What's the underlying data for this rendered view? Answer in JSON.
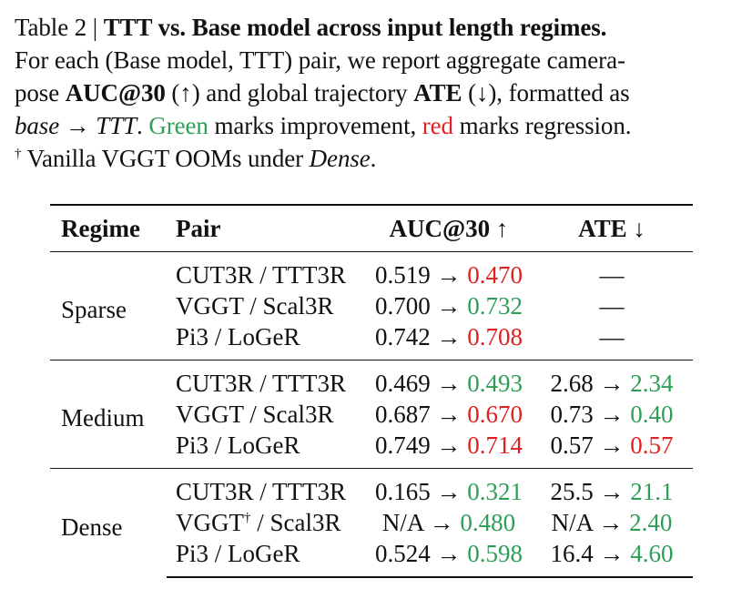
{
  "caption": {
    "line1_prefix": "Table 2 | ",
    "line1_bold": "TTT vs. Base model across input length regimes.",
    "line2": "For each (Base model, TTT) pair, we report aggregate camera-",
    "line3_a": "pose ",
    "line3_auc": "AUC@30",
    "line3_b": " (↑) and global trajectory ",
    "line3_ate": "ATE",
    "line3_c": " (↓), formatted as",
    "line4_base": "base",
    "line4_arrow": " → ",
    "line4_ttt": "TTT",
    "line4_dot": ". ",
    "line4_green": "Green",
    "line4_mid": " marks improvement, ",
    "line4_red": "red",
    "line4_end": " marks regression.",
    "line5_dagger": "†",
    "line5_text": " Vanilla VGGT OOMs under ",
    "line5_dense": "Dense",
    "line5_dot": "."
  },
  "table": {
    "headers": {
      "regime": "Regime",
      "pair": "Pair",
      "auc": "AUC@30 ↑",
      "ate": "ATE ↓"
    },
    "arrow": " → ",
    "colors": {
      "improvement": "#2e9e57",
      "regression": "#e02020"
    },
    "groups": [
      {
        "regime": "Sparse",
        "rows": [
          {
            "pair": "CUT3R / TTT3R",
            "auc_base": "0.519",
            "auc_ttt": "0.470",
            "auc_status": "red",
            "ate": "—"
          },
          {
            "pair": "VGGT / Scal3R",
            "auc_base": "0.700",
            "auc_ttt": "0.732",
            "auc_status": "green",
            "ate": "—"
          },
          {
            "pair": "Pi3 / LoGeR",
            "auc_base": "0.742",
            "auc_ttt": "0.708",
            "auc_status": "red",
            "ate": "—"
          }
        ]
      },
      {
        "regime": "Medium",
        "rows": [
          {
            "pair": "CUT3R / TTT3R",
            "auc_base": "0.469",
            "auc_ttt": "0.493",
            "auc_status": "green",
            "ate_base": "2.68",
            "ate_ttt": "2.34",
            "ate_status": "green"
          },
          {
            "pair": "VGGT / Scal3R",
            "auc_base": "0.687",
            "auc_ttt": "0.670",
            "auc_status": "red",
            "ate_base": "0.73",
            "ate_ttt": "0.40",
            "ate_status": "green"
          },
          {
            "pair": "Pi3 / LoGeR",
            "auc_base": "0.749",
            "auc_ttt": "0.714",
            "auc_status": "red",
            "ate_base": "0.57",
            "ate_ttt": "0.57",
            "ate_status": "red"
          }
        ]
      },
      {
        "regime": "Dense",
        "rows": [
          {
            "pair": "CUT3R / TTT3R",
            "auc_base": "0.165",
            "auc_ttt": "0.321",
            "auc_status": "green",
            "ate_base": "25.5",
            "ate_ttt": "21.1",
            "ate_status": "green"
          },
          {
            "pair_main": "VGGT",
            "pair_sup": "†",
            "pair_rest": " / Scal3R",
            "auc_base": "N/A",
            "auc_ttt": "0.480",
            "auc_status": "green",
            "ate_base": "N/A",
            "ate_ttt": "2.40",
            "ate_status": "green"
          },
          {
            "pair": "Pi3 / LoGeR",
            "auc_base": "0.524",
            "auc_ttt": "0.598",
            "auc_status": "green",
            "ate_base": "16.4",
            "ate_ttt": "4.60",
            "ate_status": "green"
          }
        ]
      }
    ]
  }
}
